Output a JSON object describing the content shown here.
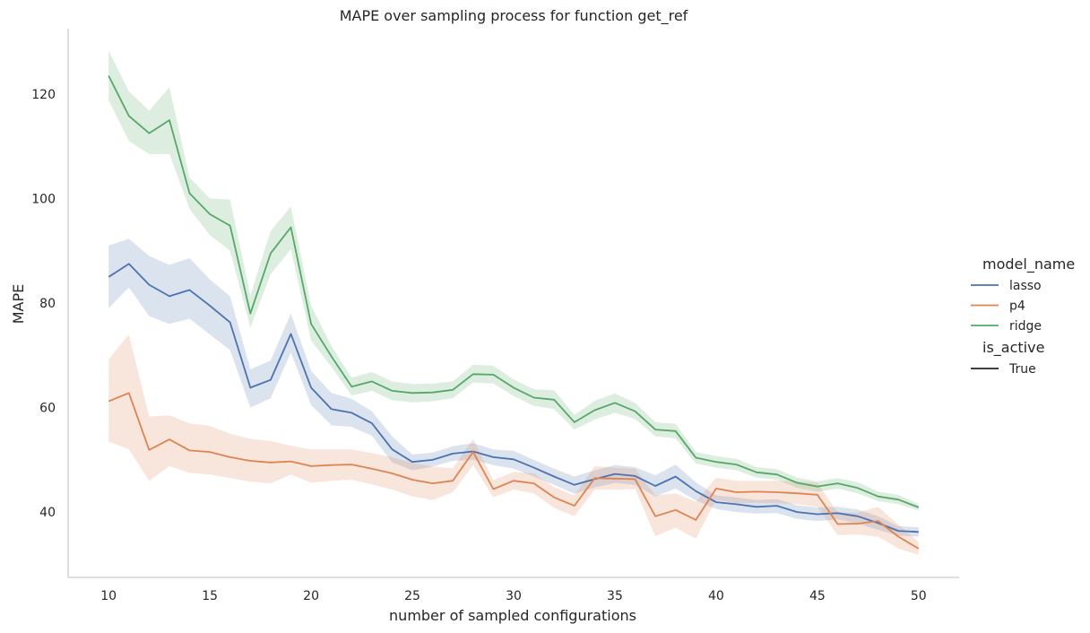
{
  "chart_data": {
    "type": "line",
    "title": "MAPE over sampling process for function get_ref",
    "xlabel": "number of sampled configurations",
    "ylabel": "MAPE",
    "xlim": [
      8,
      52
    ],
    "ylim": [
      27.5,
      132.5
    ],
    "xticks": [
      10,
      15,
      20,
      25,
      30,
      35,
      40,
      45,
      50
    ],
    "yticks": [
      40,
      60,
      80,
      100,
      120
    ],
    "grid": false,
    "legend": {
      "placement": "right",
      "hue_title": "model_name",
      "style_title": "is_active",
      "style_entries": [
        "True"
      ]
    },
    "x": [
      10,
      11,
      12,
      13,
      14,
      15,
      16,
      17,
      18,
      19,
      20,
      21,
      22,
      23,
      24,
      25,
      26,
      27,
      28,
      29,
      30,
      31,
      32,
      33,
      34,
      35,
      36,
      37,
      38,
      39,
      40,
      41,
      42,
      43,
      44,
      45,
      46,
      47,
      48,
      49,
      50
    ],
    "series": [
      {
        "name": "lasso",
        "color": "#4c72b0",
        "values": [
          85.0,
          87.5,
          83.5,
          81.3,
          82.5,
          79.5,
          76.3,
          63.8,
          65.3,
          74.1,
          63.8,
          59.7,
          59.0,
          57.0,
          52.0,
          49.6,
          50.0,
          51.2,
          51.6,
          50.5,
          50.1,
          48.5,
          46.8,
          45.2,
          46.3,
          47.3,
          46.9,
          45.0,
          46.8,
          44.0,
          41.9,
          41.5,
          41.0,
          41.2,
          40.0,
          39.6,
          39.8,
          39.2,
          37.9,
          36.4,
          36.2
        ],
        "ci_low": [
          79.0,
          83.0,
          77.5,
          76.0,
          77.0,
          74.0,
          71.0,
          60.0,
          61.8,
          70.5,
          60.5,
          56.6,
          56.3,
          54.6,
          49.5,
          48.0,
          48.7,
          49.8,
          50.0,
          49.0,
          48.3,
          46.8,
          45.2,
          43.5,
          44.7,
          45.6,
          45.2,
          43.0,
          44.5,
          42.2,
          40.6,
          40.0,
          39.7,
          39.8,
          38.7,
          38.3,
          38.6,
          37.8,
          36.6,
          35.5,
          35.3
        ],
        "ci_high": [
          91.0,
          92.3,
          89.0,
          87.3,
          88.6,
          84.5,
          81.3,
          67.3,
          69.0,
          78.0,
          67.0,
          62.8,
          61.7,
          59.3,
          54.5,
          51.0,
          51.4,
          52.6,
          53.2,
          52.0,
          51.7,
          50.0,
          48.3,
          46.8,
          48.0,
          49.0,
          48.6,
          47.0,
          49.1,
          45.7,
          43.2,
          42.8,
          42.3,
          42.5,
          41.3,
          40.9,
          41.0,
          40.5,
          39.2,
          37.3,
          37.1
        ]
      },
      {
        "name": "p4",
        "color": "#dd8452",
        "values": [
          61.2,
          62.8,
          51.9,
          53.9,
          51.8,
          51.5,
          50.5,
          49.8,
          49.5,
          49.7,
          48.8,
          49.0,
          49.1,
          48.3,
          47.4,
          46.2,
          45.5,
          46.0,
          51.5,
          44.4,
          46.0,
          45.5,
          42.8,
          41.2,
          46.5,
          46.4,
          46.3,
          39.2,
          40.4,
          38.5,
          44.5,
          43.8,
          43.9,
          43.8,
          43.6,
          43.3,
          37.7,
          37.8,
          38.3,
          35.3,
          33.0
        ],
        "ci_low": [
          53.5,
          52.0,
          46.0,
          48.8,
          47.5,
          47.2,
          46.5,
          45.8,
          45.5,
          47.2,
          45.6,
          46.0,
          46.2,
          45.3,
          44.3,
          43.0,
          42.3,
          43.8,
          49.0,
          42.8,
          44.3,
          43.6,
          40.8,
          39.2,
          44.3,
          44.3,
          44.4,
          35.4,
          37.0,
          34.9,
          42.4,
          41.7,
          41.8,
          41.7,
          41.5,
          41.0,
          35.6,
          35.7,
          35.3,
          33.0,
          31.8
        ],
        "ci_high": [
          69.2,
          74.0,
          58.3,
          58.5,
          57.0,
          56.5,
          55.0,
          54.0,
          53.6,
          52.7,
          52.0,
          52.0,
          52.0,
          51.3,
          50.5,
          49.4,
          48.7,
          48.4,
          54.0,
          46.1,
          47.7,
          47.4,
          44.8,
          43.2,
          48.8,
          48.5,
          48.3,
          43.2,
          43.6,
          42.0,
          46.6,
          46.0,
          46.0,
          46.0,
          45.9,
          45.6,
          39.9,
          39.9,
          41.0,
          37.6,
          34.3
        ]
      },
      {
        "name": "ridge",
        "color": "#55a868",
        "values": [
          123.5,
          115.8,
          112.5,
          115.0,
          101.0,
          97.0,
          94.8,
          78.0,
          89.5,
          94.5,
          76.0,
          69.8,
          64.0,
          65.0,
          63.2,
          62.8,
          62.9,
          63.4,
          66.4,
          66.3,
          63.8,
          61.9,
          61.5,
          57.2,
          59.5,
          60.9,
          59.3,
          55.8,
          55.5,
          50.4,
          49.6,
          49.1,
          47.6,
          47.2,
          45.6,
          44.9,
          45.5,
          44.6,
          43.0,
          42.4,
          40.9
        ],
        "ci_low": [
          118.8,
          111.0,
          108.5,
          108.5,
          98.0,
          93.0,
          90.0,
          75.3,
          85.5,
          90.3,
          72.8,
          67.8,
          62.3,
          63.2,
          61.4,
          61.0,
          61.2,
          61.8,
          64.8,
          64.6,
          62.2,
          60.3,
          59.7,
          55.8,
          57.7,
          59.0,
          57.8,
          54.5,
          54.1,
          49.3,
          48.5,
          48.0,
          46.6,
          46.2,
          44.6,
          43.9,
          44.5,
          43.6,
          42.1,
          41.5,
          40.3
        ],
        "ci_high": [
          128.3,
          120.5,
          116.8,
          121.3,
          104.0,
          100.0,
          99.8,
          81.5,
          93.8,
          98.5,
          79.5,
          71.8,
          65.7,
          66.8,
          65.0,
          64.5,
          64.6,
          65.0,
          68.2,
          68.0,
          65.4,
          63.5,
          63.3,
          58.6,
          61.3,
          62.7,
          60.9,
          57.2,
          56.9,
          51.5,
          50.7,
          50.2,
          48.6,
          48.2,
          46.6,
          45.9,
          46.5,
          45.7,
          43.9,
          43.3,
          41.5
        ]
      }
    ]
  }
}
